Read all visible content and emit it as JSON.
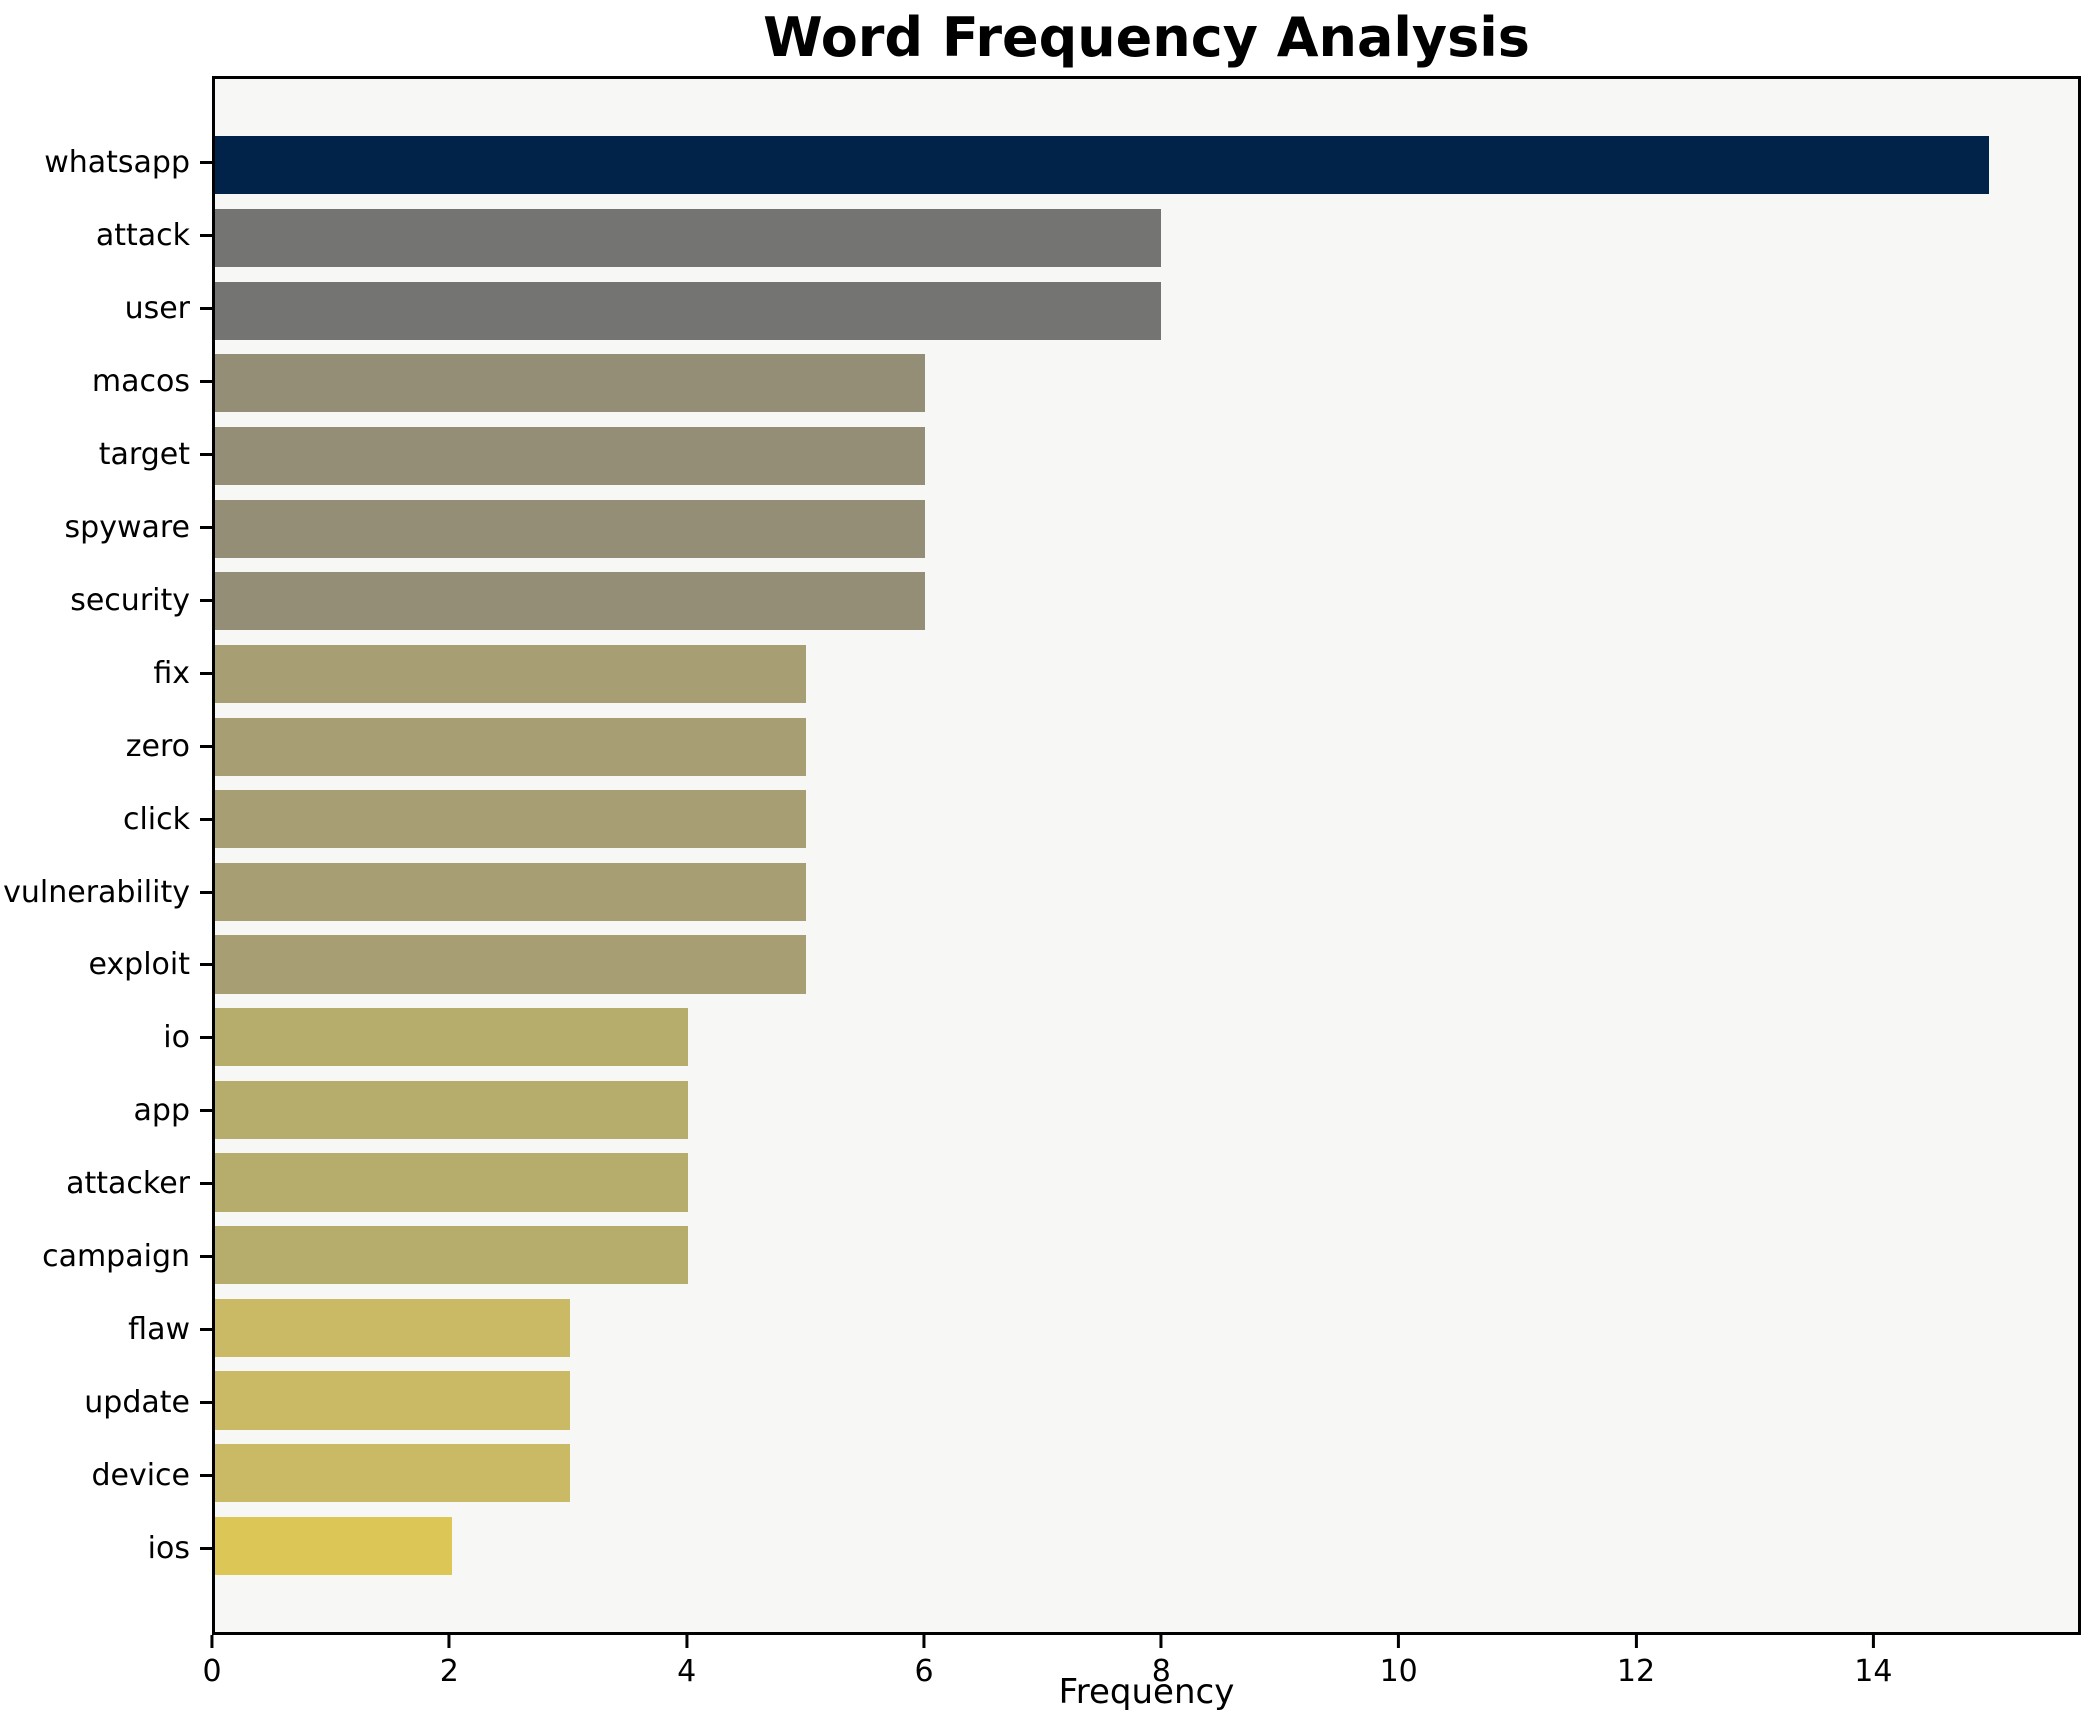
{
  "chart_data": {
    "type": "bar",
    "orientation": "horizontal",
    "title": "Word Frequency Analysis",
    "xlabel": "Frequency",
    "ylabel": "",
    "categories": [
      "whatsapp",
      "attack",
      "user",
      "macos",
      "target",
      "spyware",
      "security",
      "fix",
      "zero",
      "click",
      "vulnerability",
      "exploit",
      "io",
      "app",
      "attacker",
      "campaign",
      "flaw",
      "update",
      "device",
      "ios"
    ],
    "values": [
      15,
      8,
      8,
      6,
      6,
      6,
      6,
      5,
      5,
      5,
      5,
      5,
      4,
      4,
      4,
      4,
      3,
      3,
      3,
      2
    ],
    "bar_colors": [
      "#022349",
      "#747473",
      "#747473",
      "#948e77",
      "#948e77",
      "#948e77",
      "#948e77",
      "#a79f73",
      "#a79f73",
      "#a79f73",
      "#a79f73",
      "#a79f73",
      "#b6ac6c",
      "#b6ac6c",
      "#b6ac6c",
      "#b6ac6c",
      "#cbba65",
      "#cbba65",
      "#cbba65",
      "#dcc656"
    ],
    "xlim": [
      0,
      15.75
    ],
    "x_ticks": [
      0,
      2,
      4,
      6,
      8,
      10,
      12,
      14
    ],
    "grid": false,
    "legend": false,
    "plot_bg": "#f7f7f6",
    "fig_bg": "#ffffff"
  }
}
